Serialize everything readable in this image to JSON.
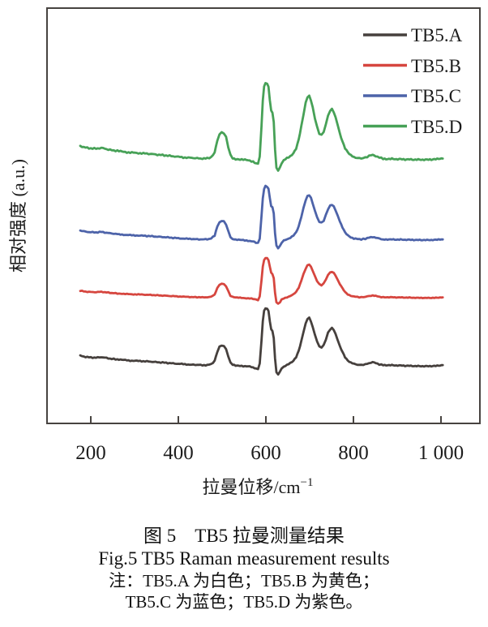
{
  "figure": {
    "x_axis_label_base": "拉曼位移/cm",
    "x_axis_label_superscript": "−1",
    "y_axis_label": "相对强度 (a.u.)",
    "x_tick_labels": [
      "200",
      "400",
      "600",
      "800",
      "1 000"
    ]
  },
  "caption": {
    "title_zh": "图 5　TB5 拉曼测量结果",
    "title_en": "Fig.5 TB5 Raman measurement results",
    "note_line1": "注：TB5.A 为白色；TB5.B 为黄色；",
    "note_line2": "TB5.C 为蓝色；TB5.D 为紫色。"
  },
  "chart_data": {
    "type": "line",
    "title": "",
    "xlabel": "拉曼位移/cm⁻¹",
    "ylabel": "相对强度 (a.u.)",
    "xlim": [
      140,
      1030
    ],
    "x_ticks": [
      200,
      400,
      600,
      800,
      1000
    ],
    "ylim": [
      0,
      10
    ],
    "y_unit": "a.u. — unitless stacked spectra, no y-axis ticks",
    "grid": false,
    "legend_position": "top-right-inside",
    "peak_positions_cm1": [
      496,
      595,
      696,
      756,
      845
    ],
    "trough_positions_cm1": [
      575,
      620
    ],
    "series": [
      {
        "name": "TB5.A",
        "color": "#46403d",
        "baseline_offset": 1.37,
        "amplitude": 1.41
      },
      {
        "name": "TB5.B",
        "color": "#d6463f",
        "baseline_offset": 3.02,
        "amplitude": 0.98
      },
      {
        "name": "TB5.C",
        "color": "#4d63a9",
        "baseline_offset": 4.41,
        "amplitude": 1.33
      },
      {
        "name": "TB5.D",
        "color": "#47a157",
        "baseline_offset": 6.35,
        "amplitude": 1.88
      }
    ],
    "profile_normalized": [
      [
        176,
        0.19
      ],
      [
        184,
        0.175
      ],
      [
        192,
        0.165
      ],
      [
        200,
        0.16
      ],
      [
        212,
        0.155
      ],
      [
        224,
        0.165
      ],
      [
        236,
        0.15
      ],
      [
        248,
        0.135
      ],
      [
        261,
        0.125
      ],
      [
        275,
        0.115
      ],
      [
        290,
        0.105
      ],
      [
        305,
        0.1
      ],
      [
        320,
        0.095
      ],
      [
        336,
        0.088
      ],
      [
        352,
        0.078
      ],
      [
        368,
        0.07
      ],
      [
        384,
        0.06
      ],
      [
        400,
        0.05
      ],
      [
        415,
        0.042
      ],
      [
        430,
        0.036
      ],
      [
        443,
        0.032
      ],
      [
        455,
        0.028
      ],
      [
        466,
        0.03
      ],
      [
        475,
        0.045
      ],
      [
        483,
        0.1
      ],
      [
        489,
        0.26
      ],
      [
        494,
        0.34
      ],
      [
        499,
        0.365
      ],
      [
        504,
        0.355
      ],
      [
        509,
        0.3
      ],
      [
        514,
        0.18
      ],
      [
        519,
        0.07
      ],
      [
        524,
        0.035
      ],
      [
        531,
        0.022
      ],
      [
        541,
        0.018
      ],
      [
        552,
        0.01
      ],
      [
        563,
        0.002
      ],
      [
        571,
        -0.012
      ],
      [
        577,
        -0.03
      ],
      [
        582,
        -0.038
      ],
      [
        586,
        0.05
      ],
      [
        590,
        0.45
      ],
      [
        593,
        0.78
      ],
      [
        596,
        0.95
      ],
      [
        599,
        1.0
      ],
      [
        603,
        0.99
      ],
      [
        606,
        0.95
      ],
      [
        609,
        0.78
      ],
      [
        612,
        0.64
      ],
      [
        615,
        0.61
      ],
      [
        618,
        0.5
      ],
      [
        621,
        0.14
      ],
      [
        624,
        -0.09
      ],
      [
        628,
        -0.13
      ],
      [
        632,
        -0.09
      ],
      [
        636,
        -0.03
      ],
      [
        641,
        0.005
      ],
      [
        648,
        0.03
      ],
      [
        656,
        0.06
      ],
      [
        663,
        0.1
      ],
      [
        669,
        0.16
      ],
      [
        675,
        0.27
      ],
      [
        681,
        0.44
      ],
      [
        686,
        0.6
      ],
      [
        691,
        0.74
      ],
      [
        695,
        0.82
      ],
      [
        699,
        0.835
      ],
      [
        703,
        0.78
      ],
      [
        707,
        0.68
      ],
      [
        712,
        0.55
      ],
      [
        717,
        0.43
      ],
      [
        722,
        0.35
      ],
      [
        727,
        0.33
      ],
      [
        732,
        0.37
      ],
      [
        737,
        0.47
      ],
      [
        742,
        0.58
      ],
      [
        747,
        0.645
      ],
      [
        751,
        0.66
      ],
      [
        755,
        0.63
      ],
      [
        759,
        0.56
      ],
      [
        764,
        0.46
      ],
      [
        769,
        0.35
      ],
      [
        775,
        0.25
      ],
      [
        781,
        0.16
      ],
      [
        787,
        0.105
      ],
      [
        794,
        0.068
      ],
      [
        801,
        0.048
      ],
      [
        809,
        0.036
      ],
      [
        818,
        0.03
      ],
      [
        827,
        0.04
      ],
      [
        836,
        0.062
      ],
      [
        844,
        0.075
      ],
      [
        851,
        0.062
      ],
      [
        859,
        0.042
      ],
      [
        868,
        0.028
      ],
      [
        878,
        0.024
      ],
      [
        888,
        0.03
      ],
      [
        898,
        0.02
      ],
      [
        908,
        0.026
      ],
      [
        918,
        0.016
      ],
      [
        928,
        0.022
      ],
      [
        938,
        0.012
      ],
      [
        948,
        0.018
      ],
      [
        958,
        0.01
      ],
      [
        968,
        0.016
      ],
      [
        978,
        0.012
      ],
      [
        988,
        0.02
      ],
      [
        998,
        0.024
      ],
      [
        1004,
        0.028
      ]
    ]
  }
}
